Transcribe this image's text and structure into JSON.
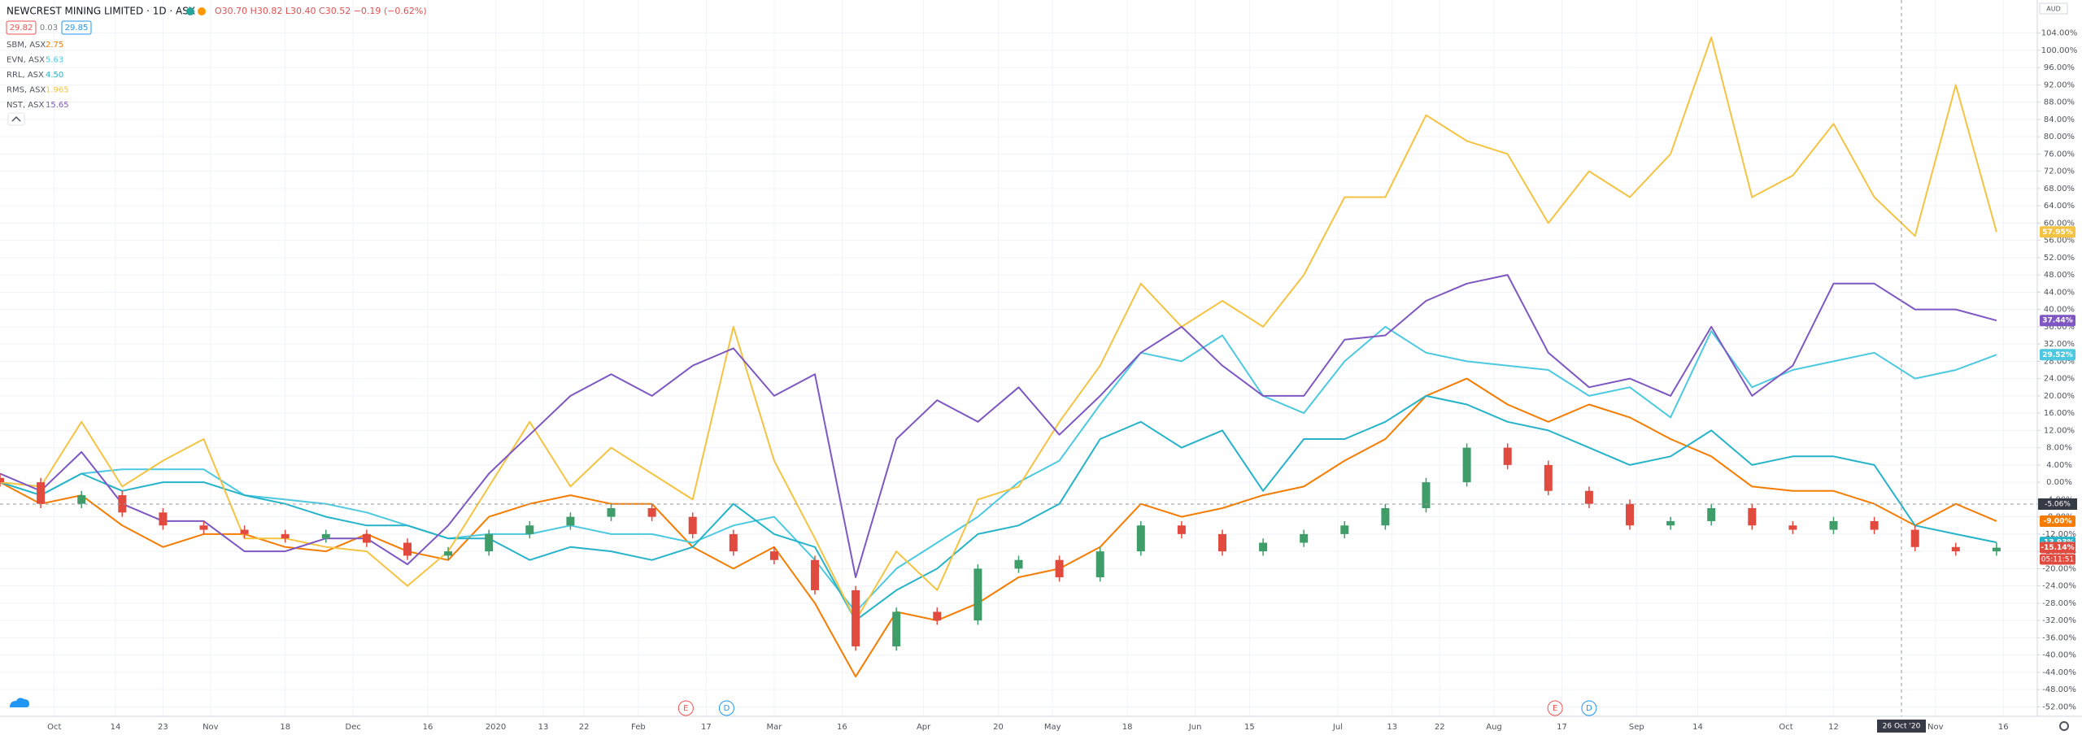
{
  "chart_data": {
    "type": "line",
    "title": "NEWCREST MINING LIMITED · 1D · ASX",
    "ohlc_text": "O30.70 H30.82 L30.40 C30.52 −0.19 (−0.62%)",
    "bid": "29.82",
    "spread": "0.03",
    "ask": "29.85",
    "currency": "AUD",
    "grid": true,
    "xlim": [
      0,
      300
    ],
    "xticks": [
      {
        "value": 8,
        "label": "Oct"
      },
      {
        "value": 17,
        "label": "14"
      },
      {
        "value": 24,
        "label": "23"
      },
      {
        "value": 31,
        "label": "Nov"
      },
      {
        "value": 42,
        "label": "18"
      },
      {
        "value": 52,
        "label": "Dec"
      },
      {
        "value": 63,
        "label": "16"
      },
      {
        "value": 73,
        "label": "2020"
      },
      {
        "value": 80,
        "label": "13"
      },
      {
        "value": 86,
        "label": "22"
      },
      {
        "value": 94,
        "label": "Feb"
      },
      {
        "value": 104,
        "label": "17"
      },
      {
        "value": 114,
        "label": "Mar"
      },
      {
        "value": 124,
        "label": "16"
      },
      {
        "value": 136,
        "label": "Apr"
      },
      {
        "value": 147,
        "label": "20"
      },
      {
        "value": 155,
        "label": "May"
      },
      {
        "value": 166,
        "label": "18"
      },
      {
        "value": 176,
        "label": "Jun"
      },
      {
        "value": 184,
        "label": "15"
      },
      {
        "value": 197,
        "label": "Jul"
      },
      {
        "value": 205,
        "label": "13"
      },
      {
        "value": 212,
        "label": "22"
      },
      {
        "value": 220,
        "label": "Aug"
      },
      {
        "value": 230,
        "label": "17"
      },
      {
        "value": 241,
        "label": "Sep"
      },
      {
        "value": 250,
        "label": "14"
      },
      {
        "value": 263,
        "label": "Oct"
      },
      {
        "value": 270,
        "label": "12"
      },
      {
        "value": 285,
        "label": "Nov"
      },
      {
        "value": 295,
        "label": "16"
      }
    ],
    "ylim": [
      -54,
      106
    ],
    "yticks": [
      {
        "value": -52,
        "label": "-52.00%"
      },
      {
        "value": -48,
        "label": "-48.00%"
      },
      {
        "value": -44,
        "label": "-44.00%"
      },
      {
        "value": -40,
        "label": "-40.00%"
      },
      {
        "value": -36,
        "label": "-36.00%"
      },
      {
        "value": -32,
        "label": "-32.00%"
      },
      {
        "value": -28,
        "label": "-28.00%"
      },
      {
        "value": -24,
        "label": "-24.00%"
      },
      {
        "value": -20,
        "label": "-20.00%"
      },
      {
        "value": -16,
        "label": "-16.00%"
      },
      {
        "value": -12,
        "label": "-12.00%"
      },
      {
        "value": -8,
        "label": "-8.00%"
      },
      {
        "value": -4,
        "label": "-4.00%"
      },
      {
        "value": 0,
        "label": "0.00%"
      },
      {
        "value": 4,
        "label": "4.00%"
      },
      {
        "value": 8,
        "label": "8.00%"
      },
      {
        "value": 12,
        "label": "12.00%"
      },
      {
        "value": 16,
        "label": "16.00%"
      },
      {
        "value": 20,
        "label": "20.00%"
      },
      {
        "value": 24,
        "label": "24.00%"
      },
      {
        "value": 28,
        "label": "28.00%"
      },
      {
        "value": 32,
        "label": "32.00%"
      },
      {
        "value": 36,
        "label": "36.00%"
      },
      {
        "value": 40,
        "label": "40.00%"
      },
      {
        "value": 44,
        "label": "44.00%"
      },
      {
        "value": 48,
        "label": "48.00%"
      },
      {
        "value": 52,
        "label": "52.00%"
      },
      {
        "value": 56,
        "label": "56.00%"
      },
      {
        "value": 60,
        "label": "60.00%"
      },
      {
        "value": 64,
        "label": "64.00%"
      },
      {
        "value": 68,
        "label": "68.00%"
      },
      {
        "value": 72,
        "label": "72.00%"
      },
      {
        "value": 76,
        "label": "76.00%"
      },
      {
        "value": 80,
        "label": "80.00%"
      },
      {
        "value": 84,
        "label": "84.00%"
      },
      {
        "value": 88,
        "label": "88.00%"
      },
      {
        "value": 92,
        "label": "92.00%"
      },
      {
        "value": 96,
        "label": "96.00%"
      },
      {
        "value": 100,
        "label": "100.00%"
      },
      {
        "value": 104,
        "label": "104.00%"
      }
    ],
    "x": [
      0,
      6,
      12,
      18,
      24,
      30,
      36,
      42,
      48,
      54,
      60,
      66,
      72,
      78,
      84,
      90,
      96,
      102,
      108,
      114,
      120,
      126,
      132,
      138,
      144,
      150,
      156,
      162,
      168,
      174,
      180,
      186,
      192,
      198,
      204,
      210,
      216,
      222,
      228,
      234,
      240,
      246,
      252,
      258,
      264,
      270,
      276,
      282,
      288,
      294
    ],
    "series": [
      {
        "name": "SBM, ASX",
        "price": "2.75",
        "color": "#f57c00",
        "values": [
          0,
          -5,
          -3,
          -10,
          -15,
          -12,
          -12,
          -15,
          -16,
          -12,
          -16,
          -18,
          -8,
          -5,
          -3,
          -5,
          -5,
          -15,
          -20,
          -15,
          -28,
          -45,
          -30,
          -32,
          -28,
          -22,
          -20,
          -15,
          -5,
          -8,
          -6,
          -3,
          -1,
          5,
          10,
          20,
          24,
          18,
          14,
          18,
          15,
          10,
          6,
          -1,
          -2,
          -2,
          -5,
          -10,
          -5,
          -9
        ],
        "value_labels": [
          null,
          null,
          null,
          null,
          null,
          null,
          null,
          null,
          null,
          null,
          null,
          null,
          null,
          null,
          null,
          null,
          null,
          null,
          null,
          null,
          null,
          null,
          null,
          null,
          null,
          null,
          null,
          null,
          null,
          null,
          null,
          null,
          null,
          null,
          null,
          null,
          null,
          null,
          null,
          null,
          null,
          null,
          null,
          null,
          null,
          null,
          null,
          null,
          null,
          "-9.00%"
        ]
      },
      {
        "name": "EVN, ASX",
        "price": "5.63",
        "color": "#4cc9e0",
        "values": [
          0,
          -3,
          2,
          3,
          3,
          3,
          -3,
          -4,
          -5,
          -7,
          -10,
          -13,
          -12,
          -12,
          -10,
          -12,
          -12,
          -14,
          -10,
          -8,
          -18,
          -30,
          -20,
          -14,
          -8,
          0,
          5,
          18,
          30,
          28,
          34,
          20,
          16,
          28,
          36,
          30,
          28,
          27,
          26,
          20,
          22,
          15,
          35,
          22,
          26,
          28,
          30,
          24,
          26,
          29.52
        ],
        "value_labels": [
          null,
          null,
          null,
          null,
          null,
          null,
          null,
          null,
          null,
          null,
          null,
          null,
          null,
          null,
          null,
          null,
          null,
          null,
          null,
          null,
          null,
          null,
          null,
          null,
          null,
          null,
          null,
          null,
          null,
          null,
          null,
          null,
          null,
          null,
          null,
          null,
          null,
          null,
          null,
          null,
          null,
          null,
          null,
          null,
          null,
          null,
          null,
          null,
          null,
          "29.52%"
        ]
      },
      {
        "name": "RRL, ASX",
        "price": "4.50",
        "color": "#26b3c9",
        "values": [
          0,
          -3,
          2,
          -2,
          0,
          0,
          -3,
          -5,
          -8,
          -10,
          -10,
          -13,
          -13,
          -18,
          -15,
          -16,
          -18,
          -15,
          -5,
          -12,
          -15,
          -32,
          -25,
          -20,
          -12,
          -10,
          -5,
          10,
          14,
          8,
          12,
          -2,
          10,
          10,
          14,
          20,
          18,
          14,
          12,
          8,
          4,
          6,
          12,
          4,
          6,
          6,
          4,
          -10,
          -12,
          -13.93
        ],
        "value_labels": [
          null,
          null,
          null,
          null,
          null,
          null,
          null,
          null,
          null,
          null,
          null,
          null,
          null,
          null,
          null,
          null,
          null,
          null,
          null,
          null,
          null,
          null,
          null,
          null,
          null,
          null,
          null,
          null,
          null,
          null,
          null,
          null,
          null,
          null,
          null,
          null,
          null,
          null,
          null,
          null,
          null,
          null,
          null,
          null,
          null,
          null,
          null,
          null,
          null,
          "-13.93%"
        ]
      },
      {
        "name": "RMS, ASX",
        "price": "1.965",
        "color": "#f5c342",
        "values": [
          0,
          -1,
          14,
          -1,
          5,
          10,
          -13,
          -13,
          -15,
          -16,
          -24,
          -16,
          -1,
          14,
          -1,
          8,
          2,
          -4,
          36,
          5,
          -13,
          -32,
          -16,
          -25,
          -4,
          -1,
          14,
          27,
          46,
          36,
          42,
          36,
          48,
          66,
          66,
          85,
          79,
          76,
          60,
          72,
          66,
          76,
          103,
          66,
          71,
          83,
          66,
          57,
          92,
          57.95
        ],
        "value_labels": [
          null,
          null,
          null,
          null,
          null,
          null,
          null,
          null,
          null,
          null,
          null,
          null,
          null,
          null,
          null,
          null,
          null,
          null,
          null,
          null,
          null,
          null,
          null,
          null,
          null,
          null,
          null,
          null,
          null,
          null,
          null,
          null,
          null,
          null,
          null,
          null,
          null,
          null,
          null,
          null,
          null,
          null,
          null,
          null,
          null,
          null,
          null,
          null,
          null,
          "57.95%"
        ]
      },
      {
        "name": "NST, ASX",
        "price": "15.65",
        "color": "#7e57c2",
        "values": [
          2,
          -2,
          7,
          -5,
          -9,
          -9,
          -16,
          -16,
          -13,
          -13,
          -19,
          -10,
          2,
          11,
          20,
          25,
          20,
          27,
          31,
          20,
          25,
          -22,
          10,
          19,
          14,
          22,
          11,
          20,
          30,
          36,
          27,
          20,
          20,
          33,
          34,
          42,
          46,
          48,
          30,
          22,
          24,
          20,
          36,
          20,
          27,
          46,
          46,
          40,
          40,
          37.44
        ],
        "value_labels": [
          null,
          null,
          null,
          null,
          null,
          null,
          null,
          null,
          null,
          null,
          null,
          null,
          null,
          null,
          null,
          null,
          null,
          null,
          null,
          null,
          null,
          null,
          null,
          null,
          null,
          null,
          null,
          null,
          null,
          null,
          null,
          null,
          null,
          null,
          null,
          null,
          null,
          null,
          null,
          null,
          null,
          null,
          null,
          null,
          null,
          null,
          null,
          null,
          null,
          "37.44%"
        ]
      }
    ],
    "candles": {
      "up_color": "#3f9d6a",
      "down_color": "#e04a3f",
      "open": [
        1,
        0,
        -5,
        -3,
        -7,
        -10,
        -11,
        -12,
        -13,
        -12,
        -14,
        -17,
        -16,
        -12,
        -10,
        -8,
        -6,
        -8,
        -12,
        -16,
        -18,
        -25,
        -38,
        -30,
        -32,
        -20,
        -18,
        -22,
        -16,
        -10,
        -12,
        -16,
        -14,
        -12,
        -10,
        -6,
        0,
        8,
        4,
        -2,
        -5,
        -10,
        -9,
        -6,
        -10,
        -11,
        -9,
        -11,
        -15,
        -16
      ],
      "high": [
        2,
        1,
        -2,
        -2,
        -6,
        -9,
        -10,
        -11,
        -11,
        -11,
        -13,
        -15,
        -11,
        -9,
        -7,
        -5,
        -5,
        -7,
        -11,
        -15,
        -17,
        -24,
        -29,
        -29,
        -19,
        -17,
        -17,
        -15,
        -9,
        -9,
        -11,
        -13,
        -11,
        -9,
        -5,
        1,
        9,
        9,
        5,
        -1,
        -4,
        -8,
        -5,
        -5,
        -9,
        -8,
        -8,
        -10,
        -14,
        -14
      ],
      "low": [
        -1,
        -6,
        -6,
        -8,
        -11,
        -12,
        -13,
        -14,
        -14,
        -15,
        -18,
        -18,
        -17,
        -13,
        -11,
        -9,
        -9,
        -13,
        -17,
        -19,
        -26,
        -39,
        -39,
        -33,
        -33,
        -21,
        -23,
        -23,
        -17,
        -13,
        -17,
        -17,
        -15,
        -13,
        -11,
        -7,
        -1,
        3,
        -3,
        -6,
        -11,
        -11,
        -10,
        -11,
        -12,
        -12,
        -12,
        -16,
        -17,
        -17
      ],
      "close": [
        0,
        -5,
        -3,
        -7,
        -10,
        -11,
        -12,
        -13,
        -12,
        -14,
        -17,
        -16,
        -12,
        -10,
        -8,
        -6,
        -8,
        -12,
        -16,
        -18,
        -25,
        -38,
        -30,
        -32,
        -20,
        -18,
        -22,
        -16,
        -10,
        -12,
        -16,
        -14,
        -12,
        -10,
        -6,
        0,
        8,
        4,
        -2,
        -5,
        -10,
        -9,
        -6,
        -10,
        -11,
        -9,
        -11,
        -15,
        -16,
        -15.14
      ],
      "value_labels": [
        null,
        null,
        null,
        null,
        null,
        null,
        null,
        null,
        null,
        null,
        null,
        null,
        null,
        null,
        null,
        null,
        null,
        null,
        null,
        null,
        null,
        null,
        null,
        null,
        null,
        null,
        null,
        null,
        null,
        null,
        null,
        null,
        null,
        null,
        null,
        null,
        null,
        null,
        null,
        null,
        null,
        null,
        null,
        null,
        null,
        null,
        null,
        null,
        null,
        "-15.14%"
      ],
      "countdown": "05:11:51"
    },
    "crosshair": {
      "x": 280,
      "x_label": "26 Oct '20",
      "y": -5.06,
      "y_label": "-5.06%"
    },
    "events": [
      {
        "label": "E",
        "x": 101,
        "color": "#ef5350"
      },
      {
        "label": "D",
        "x": 107,
        "color": "#2196f3"
      },
      {
        "label": "E",
        "x": 229,
        "color": "#ef5350"
      },
      {
        "label": "D",
        "x": 234,
        "color": "#2196f3"
      }
    ]
  }
}
